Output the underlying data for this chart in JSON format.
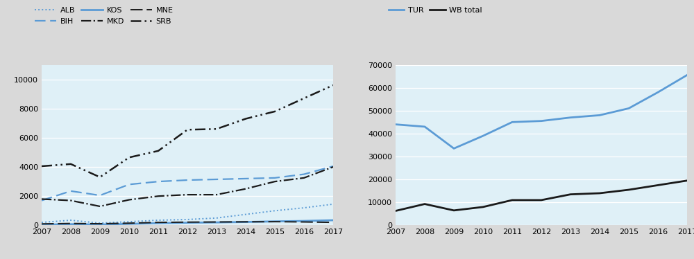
{
  "years": [
    2007,
    2008,
    2009,
    2010,
    2011,
    2012,
    2013,
    2014,
    2015,
    2016,
    2017
  ],
  "ALB": [
    200,
    350,
    150,
    250,
    350,
    400,
    500,
    750,
    1000,
    1200,
    1450
  ],
  "BIH": [
    1700,
    2350,
    2050,
    2800,
    3000,
    3100,
    3150,
    3200,
    3250,
    3500,
    4050
  ],
  "KOS": [
    50,
    80,
    60,
    100,
    150,
    180,
    200,
    230,
    270,
    300,
    350
  ],
  "MKD": [
    1800,
    1700,
    1300,
    1750,
    2000,
    2100,
    2100,
    2500,
    3000,
    3250,
    4000
  ],
  "MNE": [
    100,
    130,
    110,
    150,
    200,
    220,
    230,
    240,
    250,
    230,
    200
  ],
  "SRB": [
    4050,
    4200,
    3300,
    4650,
    5100,
    6550,
    6600,
    7300,
    7800,
    8700,
    9600
  ],
  "TUR": [
    44000,
    43000,
    33500,
    39000,
    45000,
    45500,
    47000,
    48000,
    51000,
    58000,
    65500
  ],
  "WB_total": [
    6300,
    9300,
    6500,
    8000,
    11000,
    11000,
    13500,
    14000,
    15500,
    17500,
    19500
  ],
  "plot_bg_color": "#dff0f7",
  "fig_bg_color": "#d9d9d9",
  "alb_color": "#5b9bd5",
  "bih_color": "#5b9bd5",
  "kos_color": "#5b9bd5",
  "mkd_color": "#1a1a1a",
  "mne_color": "#1a1a1a",
  "srb_color": "#1a1a1a",
  "tur_color": "#5b9bd5",
  "wb_color": "#1a1a1a",
  "ylim_left": [
    0,
    11000
  ],
  "ylim_right": [
    0,
    70000
  ],
  "yticks_left": [
    0,
    2000,
    4000,
    6000,
    8000,
    10000
  ],
  "yticks_right": [
    0,
    10000,
    20000,
    30000,
    40000,
    50000,
    60000,
    70000
  ]
}
